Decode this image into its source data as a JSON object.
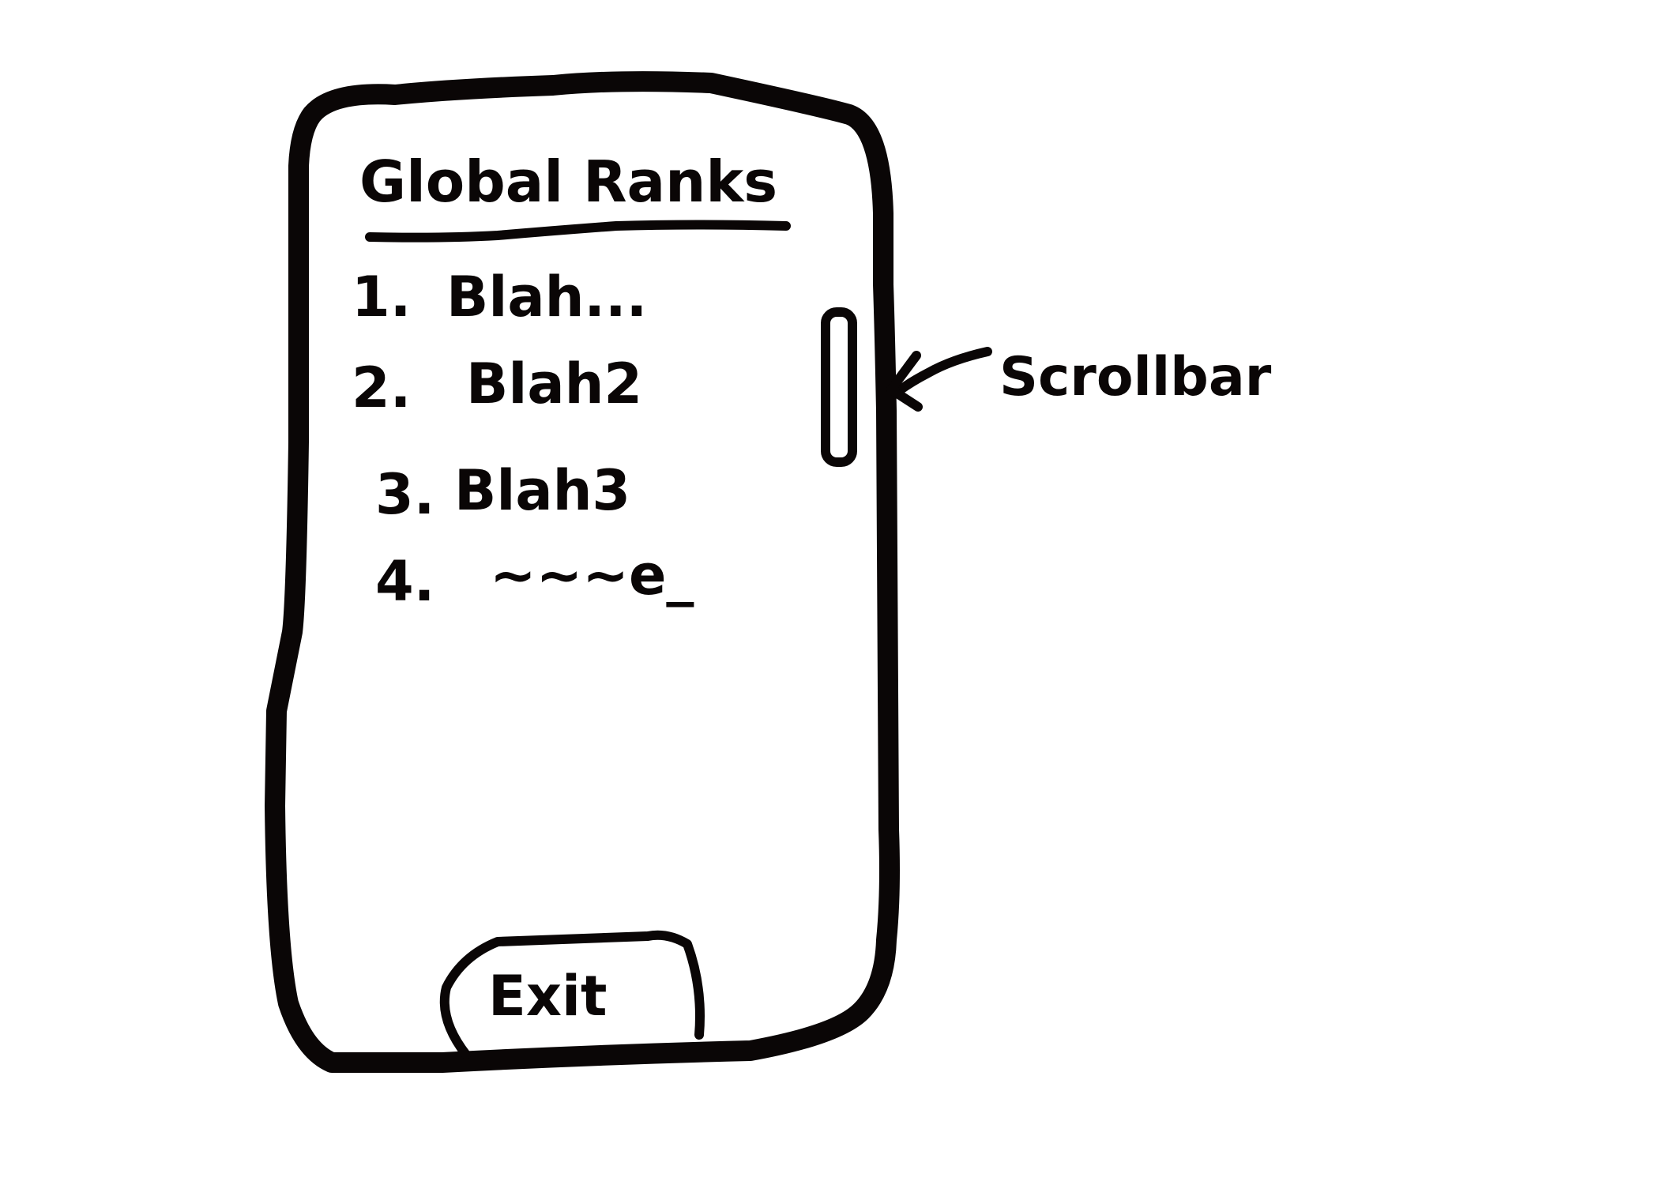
{
  "panel": {
    "title": "Global Ranks",
    "rows": [
      {
        "number": "1.",
        "name": "Blah..."
      },
      {
        "number": "2.",
        "name": "Blah2"
      },
      {
        "number": "3.",
        "name": "Blah3"
      },
      {
        "number": "4.",
        "name": "~~~e_"
      }
    ],
    "exit_label": "Exit"
  },
  "annotations": {
    "scrollbar_label": "Scrollbar"
  },
  "colors": {
    "ink": "#0a0606",
    "paper": "#ffffff"
  },
  "icons": {
    "arrow": "left-arrow-icon"
  }
}
